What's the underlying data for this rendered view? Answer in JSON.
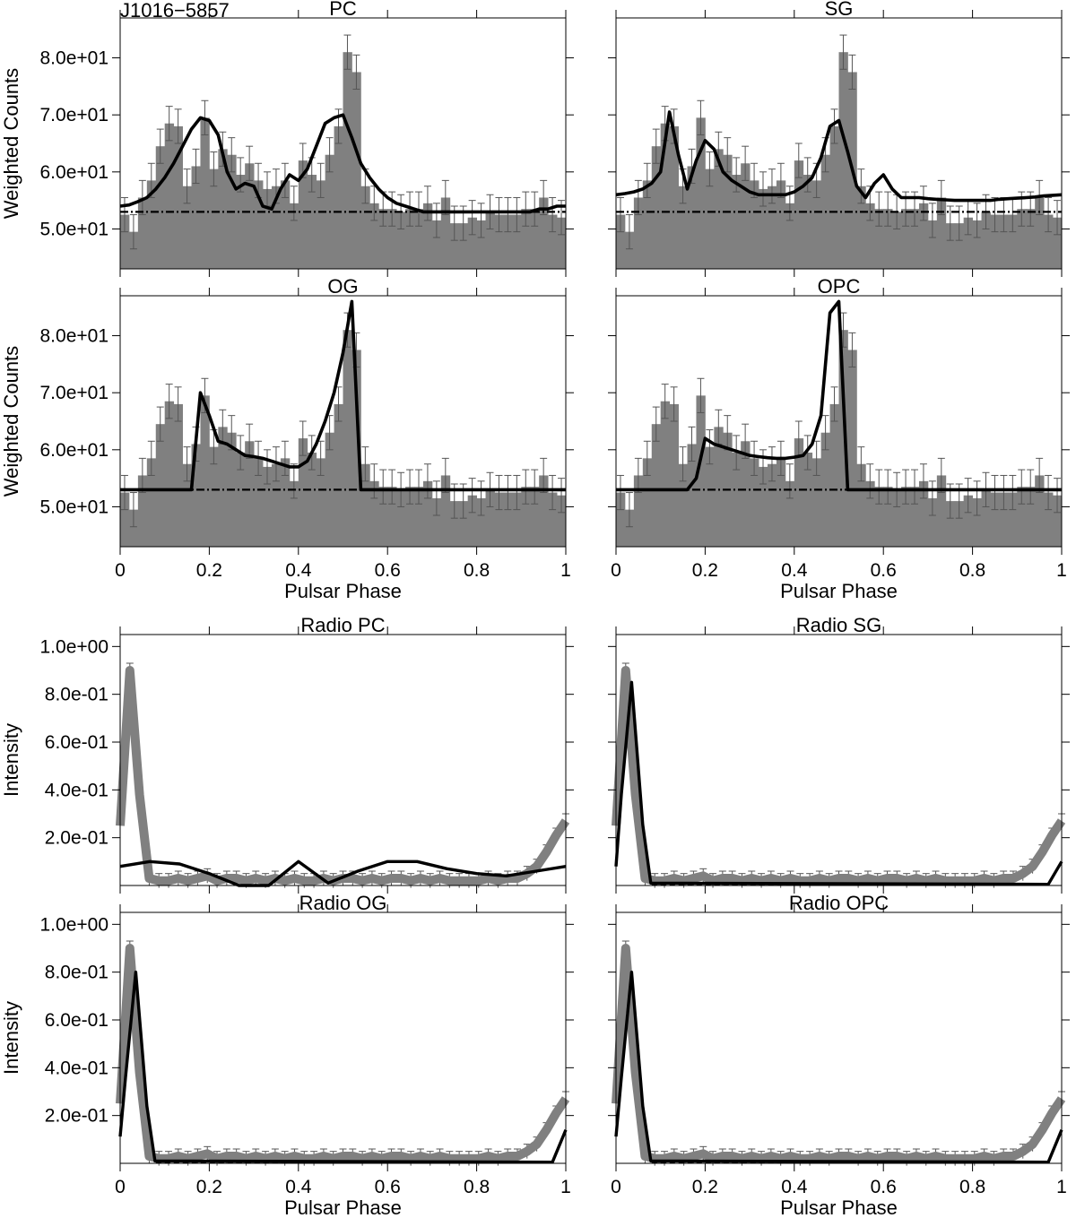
{
  "figure": {
    "pulsar_name": "J1016−5857",
    "x_axis_label": "Pulsar Phase",
    "gamma_y_label": "Weighted Counts",
    "radio_y_label": "Intensity",
    "x_ticks": [
      "0",
      "0.2",
      "0.4",
      "0.6",
      "0.8",
      "1"
    ],
    "gamma_y_ticks": [
      {
        "value": 50,
        "label": "5.0e+01"
      },
      {
        "value": 60,
        "label": "6.0e+01"
      },
      {
        "value": 70,
        "label": "7.0e+01"
      },
      {
        "value": 80,
        "label": "8.0e+01"
      }
    ],
    "radio_y_ticks": [
      {
        "value": 0.2,
        "label": "2.0e-01"
      },
      {
        "value": 0.4,
        "label": "4.0e-01"
      },
      {
        "value": 0.6,
        "label": "6.0e-01"
      },
      {
        "value": 0.8,
        "label": "8.0e-01"
      },
      {
        "value": 1.0,
        "label": "1.0e+00"
      }
    ],
    "colors": {
      "histogram": "#808080",
      "model": "#000000",
      "frame": "#000000",
      "background": "#ffffff"
    }
  },
  "chart_data": [
    {
      "type": "bar",
      "panel": "gamma-pc",
      "title": "PC",
      "xlabel": "",
      "ylabel": "Weighted Counts",
      "xlim": [
        0,
        1
      ],
      "ylim": [
        43,
        87
      ],
      "phase_bins": 50,
      "histogram": [
        52.5,
        49.5,
        55.5,
        58.5,
        64.5,
        68.5,
        68.0,
        57.5,
        61.0,
        69.5,
        60.5,
        64.0,
        63.0,
        59.5,
        61.5,
        58.5,
        57.0,
        57.5,
        58.5,
        54.5,
        62.0,
        59.5,
        58.5,
        63.0,
        68.0,
        81.0,
        77.5,
        57.5,
        54.5,
        53.5,
        53.5,
        53.0,
        53.5,
        53.5,
        54.5,
        51.5,
        55.5,
        51.0,
        51.0,
        52.0,
        51.5,
        53.0,
        52.5,
        52.5,
        52.5,
        53.5,
        53.5,
        55.5,
        52.5,
        52.0
      ],
      "histogram_errors": 3,
      "background_level": 53.0,
      "model": [
        54.0,
        54.2,
        54.8,
        55.5,
        57.0,
        59.0,
        61.5,
        64.5,
        67.5,
        69.5,
        69.0,
        66.5,
        60.0,
        57.0,
        58.0,
        57.5,
        54.0,
        53.5,
        57.0,
        59.5,
        58.5,
        60.5,
        64.5,
        68.5,
        69.5,
        70.0,
        66.0,
        61.5,
        59.0,
        57.0,
        55.5,
        54.5,
        54.0,
        53.5,
        53.0,
        53.0,
        53.0,
        53.0,
        53.0,
        53.0,
        53.0,
        53.0,
        53.0,
        53.0,
        53.0,
        53.0,
        53.0,
        53.5,
        53.5,
        54.0,
        54.0
      ]
    },
    {
      "type": "bar",
      "panel": "gamma-sg",
      "title": "SG",
      "xlabel": "",
      "ylabel": "",
      "xlim": [
        0,
        1
      ],
      "ylim": [
        43,
        87
      ],
      "phase_bins": 50,
      "histogram": [
        52.5,
        49.5,
        55.5,
        58.5,
        64.5,
        68.5,
        68.0,
        57.5,
        61.0,
        69.5,
        60.5,
        64.0,
        63.0,
        59.5,
        61.5,
        58.5,
        57.0,
        57.5,
        58.5,
        54.5,
        62.0,
        59.5,
        58.5,
        63.0,
        68.0,
        81.0,
        77.5,
        57.5,
        54.5,
        53.5,
        53.5,
        53.0,
        53.5,
        53.5,
        54.5,
        51.5,
        55.5,
        51.0,
        51.0,
        52.0,
        51.5,
        53.0,
        52.5,
        52.5,
        52.5,
        53.5,
        53.5,
        55.5,
        52.5,
        52.0
      ],
      "histogram_errors": 3,
      "background_level": 53.0,
      "model": [
        56.0,
        56.2,
        56.5,
        57.0,
        58.0,
        60.0,
        70.5,
        63.0,
        57.0,
        62.0,
        65.5,
        64.0,
        60.0,
        58.5,
        57.5,
        56.5,
        56.0,
        56.0,
        56.0,
        56.0,
        56.5,
        57.5,
        59.0,
        62.5,
        68.0,
        69.0,
        63.5,
        57.5,
        55.5,
        58.0,
        59.5,
        57.0,
        55.5,
        55.5,
        55.5,
        55.3,
        55.2,
        55.1,
        55.0,
        55.0,
        55.0,
        55.0,
        55.0,
        55.2,
        55.3,
        55.4,
        55.5,
        55.6,
        55.8,
        55.9,
        56.0
      ]
    },
    {
      "type": "bar",
      "panel": "gamma-og",
      "title": "OG",
      "xlabel": "Pulsar Phase",
      "ylabel": "Weighted Counts",
      "xlim": [
        0,
        1
      ],
      "ylim": [
        43,
        87
      ],
      "phase_bins": 50,
      "histogram": [
        52.5,
        49.5,
        55.5,
        58.5,
        64.5,
        68.5,
        68.0,
        57.5,
        61.0,
        69.5,
        60.5,
        64.0,
        63.0,
        59.5,
        61.5,
        58.5,
        57.0,
        57.5,
        58.5,
        54.5,
        62.0,
        59.5,
        58.5,
        63.0,
        68.0,
        81.0,
        77.5,
        57.5,
        54.5,
        53.5,
        53.5,
        53.0,
        53.5,
        53.5,
        54.5,
        51.5,
        55.5,
        51.0,
        51.0,
        52.0,
        51.5,
        53.0,
        52.5,
        52.5,
        52.5,
        53.5,
        53.5,
        55.5,
        52.5,
        52.0
      ],
      "histogram_errors": 3,
      "background_level": 53.0,
      "model": [
        53.0,
        53.0,
        53.0,
        53.0,
        53.0,
        53.0,
        53.0,
        53.0,
        53.0,
        70.0,
        66.0,
        61.5,
        61.0,
        60.0,
        59.0,
        58.8,
        58.5,
        58.0,
        57.5,
        57.0,
        57.0,
        58.0,
        61.0,
        65.0,
        70.0,
        77.0,
        86.0,
        53.0,
        53.0,
        53.0,
        53.0,
        53.0,
        53.0,
        53.0,
        53.0,
        53.0,
        53.0,
        53.0,
        53.0,
        53.0,
        53.0,
        53.0,
        53.0,
        53.0,
        53.0,
        53.0,
        53.0,
        53.0,
        53.0,
        53.0,
        53.0
      ]
    },
    {
      "type": "bar",
      "panel": "gamma-opc",
      "title": "OPC",
      "xlabel": "Pulsar Phase",
      "ylabel": "",
      "xlim": [
        0,
        1
      ],
      "ylim": [
        43,
        87
      ],
      "phase_bins": 50,
      "histogram": [
        52.5,
        49.5,
        55.5,
        58.5,
        64.5,
        68.5,
        68.0,
        57.5,
        61.0,
        69.5,
        60.5,
        64.0,
        63.0,
        59.5,
        61.5,
        58.5,
        57.0,
        57.5,
        58.5,
        54.5,
        62.0,
        59.5,
        58.5,
        63.0,
        68.0,
        81.0,
        77.5,
        57.5,
        54.5,
        53.5,
        53.5,
        53.0,
        53.5,
        53.5,
        54.5,
        51.5,
        55.5,
        51.0,
        51.0,
        52.0,
        51.5,
        53.0,
        52.5,
        52.5,
        52.5,
        53.5,
        53.5,
        55.5,
        52.5,
        52.0
      ],
      "histogram_errors": 3,
      "background_level": 53.0,
      "model": [
        53.0,
        53.0,
        53.0,
        53.0,
        53.0,
        53.0,
        53.0,
        53.0,
        53.0,
        55.0,
        62.0,
        61.0,
        60.5,
        60.0,
        59.5,
        59.0,
        58.8,
        58.6,
        58.5,
        58.5,
        58.7,
        59.0,
        61.0,
        66.0,
        84.0,
        86.0,
        53.0,
        53.0,
        53.0,
        53.0,
        53.0,
        53.0,
        53.0,
        53.0,
        53.0,
        53.0,
        53.0,
        53.0,
        53.0,
        53.0,
        53.0,
        53.0,
        53.0,
        53.0,
        53.0,
        53.0,
        53.0,
        53.0,
        53.0,
        53.0,
        53.0
      ]
    },
    {
      "type": "line",
      "panel": "radio-pc",
      "title": "Radio PC",
      "xlabel": "",
      "ylabel": "Intensity",
      "xlim": [
        0,
        1
      ],
      "ylim": [
        0,
        1.05
      ],
      "observed": [
        0.25,
        0.9,
        0.38,
        0.03,
        0.02,
        0.02,
        0.03,
        0.02,
        0.03,
        0.04,
        0.02,
        0.03,
        0.03,
        0.02,
        0.03,
        0.02,
        0.03,
        0.02,
        0.03,
        0.02,
        0.02,
        0.03,
        0.02,
        0.03,
        0.03,
        0.02,
        0.03,
        0.02,
        0.03,
        0.03,
        0.02,
        0.03,
        0.02,
        0.03,
        0.02,
        0.02,
        0.02,
        0.02,
        0.03,
        0.02,
        0.03,
        0.03,
        0.05,
        0.08,
        0.14,
        0.21,
        0.27
      ],
      "observed_errors": 0.03,
      "model": [
        0.08,
        0.1,
        0.09,
        0.05,
        0.0,
        0.0,
        0.1,
        0.01,
        0.06,
        0.1,
        0.1,
        0.07,
        0.05,
        0.04,
        0.06,
        0.08
      ]
    },
    {
      "type": "line",
      "panel": "radio-sg",
      "title": "Radio SG",
      "xlabel": "",
      "ylabel": "",
      "xlim": [
        0,
        1
      ],
      "ylim": [
        0,
        1.05
      ],
      "observed": [
        0.25,
        0.9,
        0.38,
        0.03,
        0.02,
        0.02,
        0.03,
        0.02,
        0.03,
        0.04,
        0.02,
        0.03,
        0.03,
        0.02,
        0.03,
        0.02,
        0.03,
        0.02,
        0.03,
        0.02,
        0.02,
        0.03,
        0.02,
        0.03,
        0.03,
        0.02,
        0.03,
        0.02,
        0.03,
        0.03,
        0.02,
        0.03,
        0.02,
        0.03,
        0.02,
        0.02,
        0.02,
        0.02,
        0.03,
        0.02,
        0.03,
        0.03,
        0.05,
        0.08,
        0.14,
        0.21,
        0.27
      ],
      "observed_errors": 0.03,
      "model_peak_phase": 0.035,
      "model_peak": 0.85,
      "model_end_value": 0.1
    },
    {
      "type": "line",
      "panel": "radio-og",
      "title": "Radio OG",
      "xlabel": "Pulsar Phase",
      "ylabel": "Intensity",
      "xlim": [
        0,
        1
      ],
      "ylim": [
        0,
        1.05
      ],
      "observed": [
        0.25,
        0.9,
        0.38,
        0.03,
        0.02,
        0.02,
        0.03,
        0.02,
        0.03,
        0.04,
        0.02,
        0.03,
        0.03,
        0.02,
        0.03,
        0.02,
        0.03,
        0.02,
        0.03,
        0.02,
        0.02,
        0.03,
        0.02,
        0.03,
        0.03,
        0.02,
        0.03,
        0.02,
        0.03,
        0.03,
        0.02,
        0.03,
        0.02,
        0.03,
        0.02,
        0.02,
        0.02,
        0.02,
        0.03,
        0.02,
        0.03,
        0.03,
        0.05,
        0.08,
        0.14,
        0.21,
        0.27
      ],
      "observed_errors": 0.03,
      "model_peak_phase": 0.035,
      "model_peak": 0.8,
      "model_end_value": 0.14
    },
    {
      "type": "line",
      "panel": "radio-opc",
      "title": "Radio OPC",
      "xlabel": "Pulsar Phase",
      "ylabel": "",
      "xlim": [
        0,
        1
      ],
      "ylim": [
        0,
        1.05
      ],
      "observed": [
        0.25,
        0.9,
        0.38,
        0.03,
        0.02,
        0.02,
        0.03,
        0.02,
        0.03,
        0.04,
        0.02,
        0.03,
        0.03,
        0.02,
        0.03,
        0.02,
        0.03,
        0.02,
        0.03,
        0.02,
        0.02,
        0.03,
        0.02,
        0.03,
        0.03,
        0.02,
        0.03,
        0.02,
        0.03,
        0.03,
        0.02,
        0.03,
        0.02,
        0.03,
        0.02,
        0.02,
        0.02,
        0.02,
        0.03,
        0.02,
        0.03,
        0.03,
        0.05,
        0.08,
        0.14,
        0.21,
        0.27
      ],
      "observed_errors": 0.03,
      "model_peak_phase": 0.035,
      "model_peak": 0.8,
      "model_end_value": 0.14
    }
  ]
}
